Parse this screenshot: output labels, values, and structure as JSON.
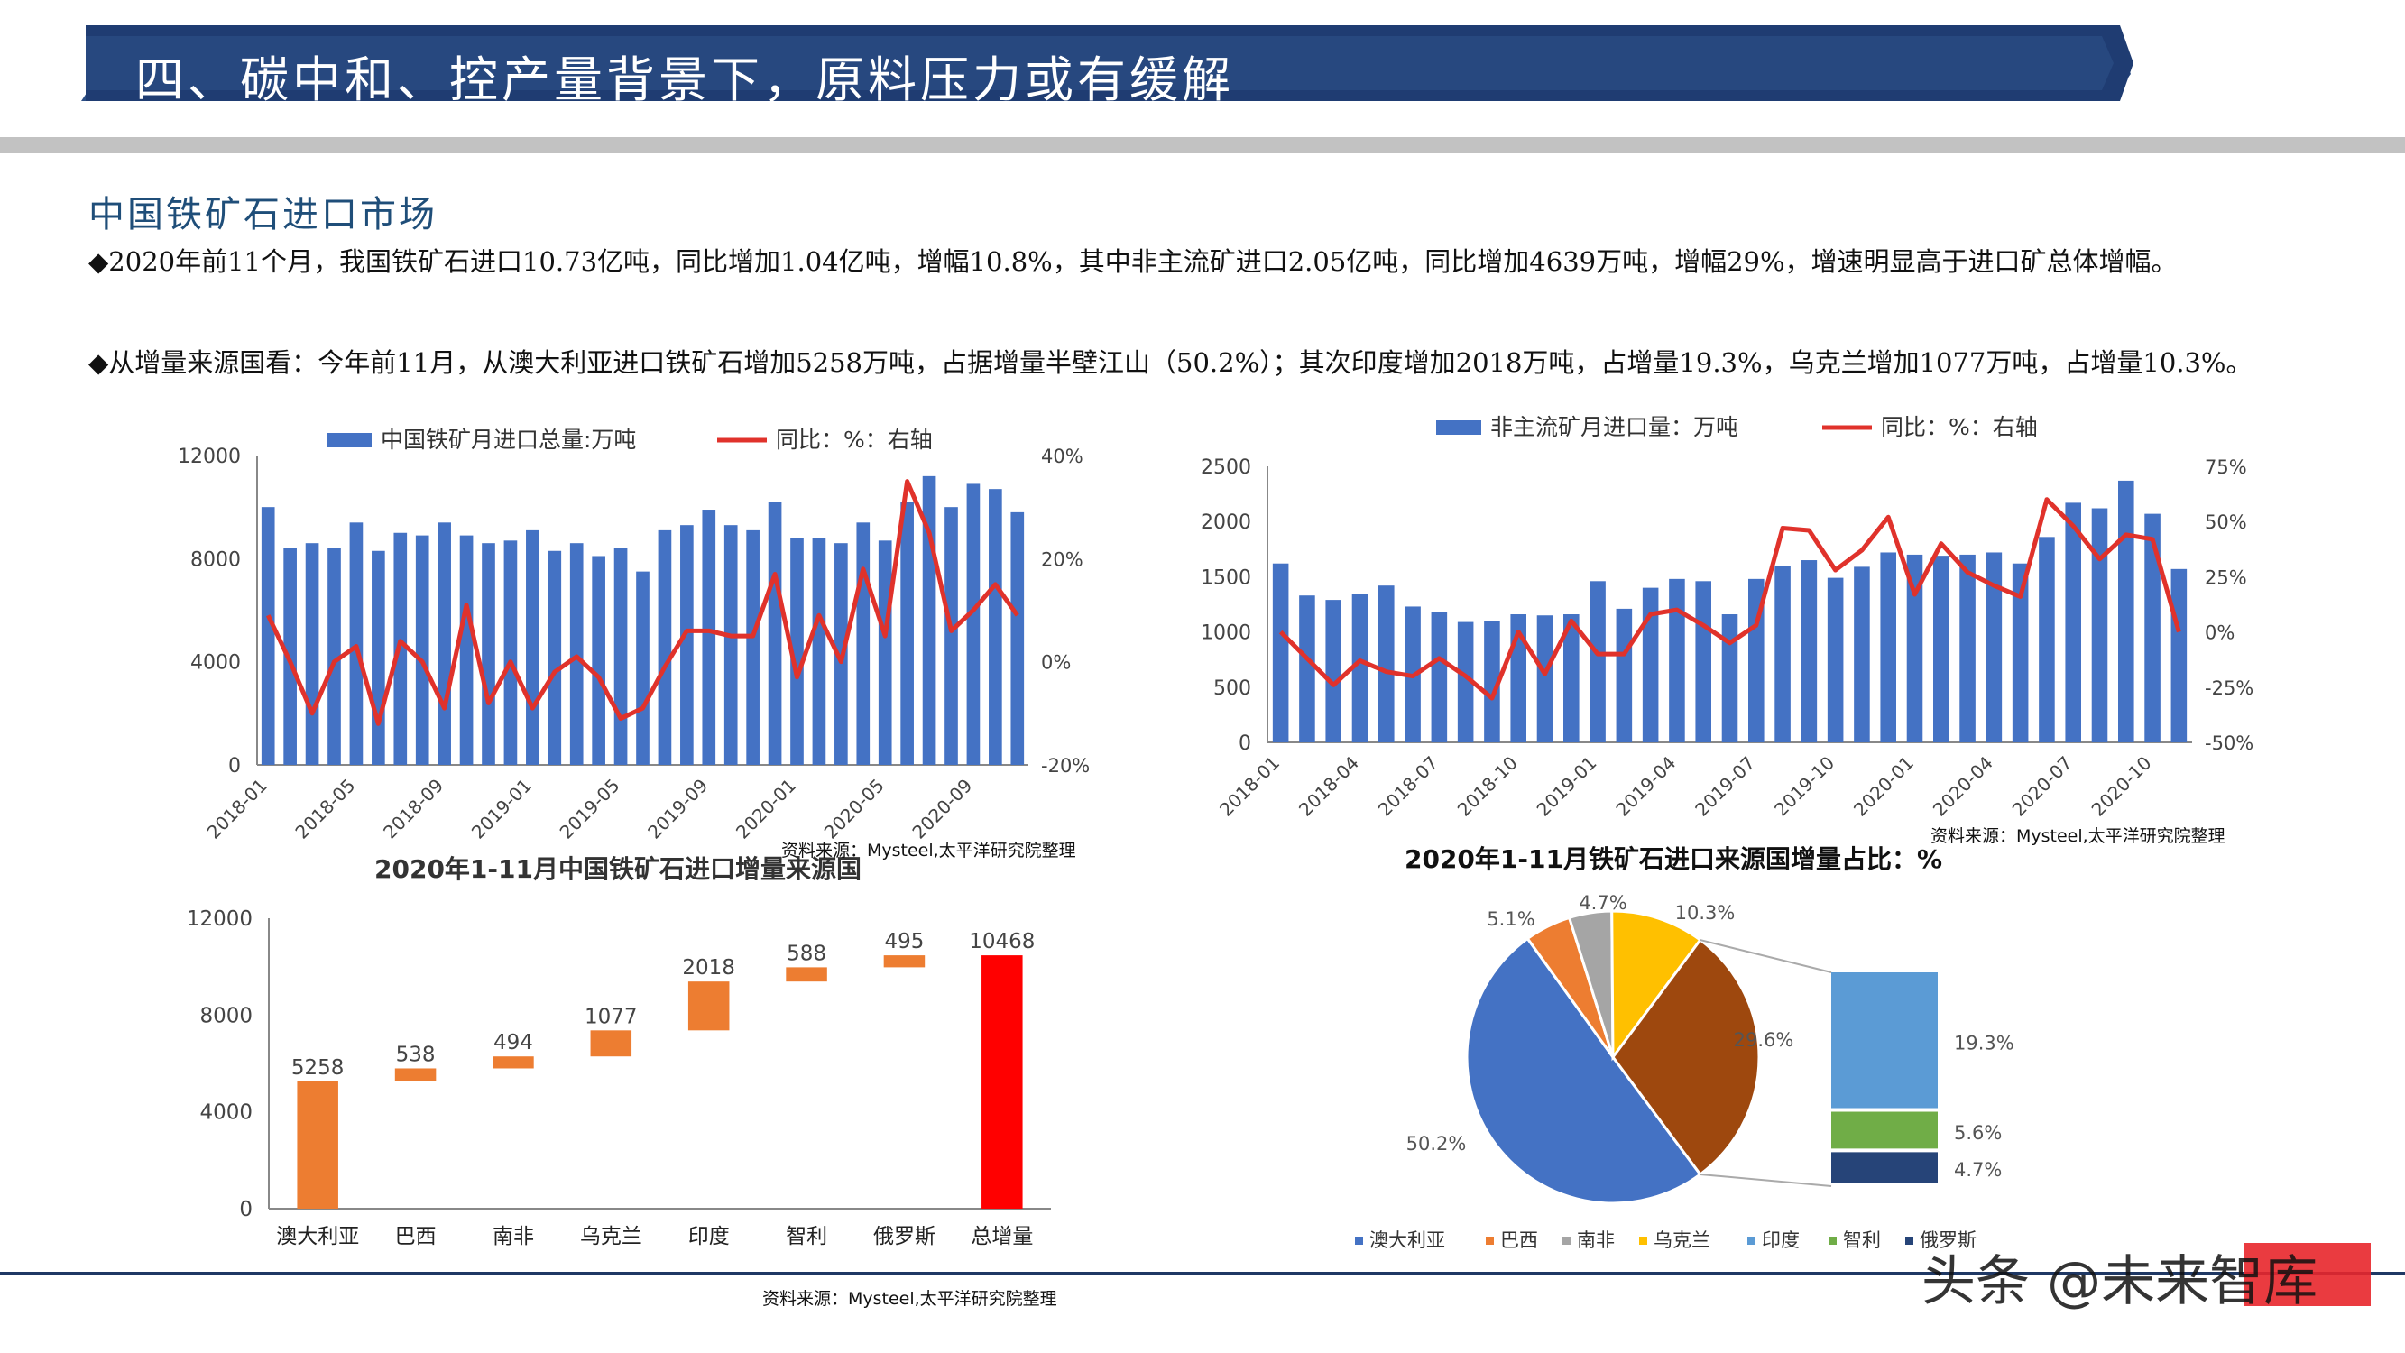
{
  "header": {
    "title": "四、碳中和、控产量背景下，原料压力或有缓解"
  },
  "section": {
    "heading": "中国铁矿石进口市场"
  },
  "paragraphs": [
    "◆2020年前11个月，我国铁矿石进口10.73亿吨，同比增加1.04亿吨，增幅10.8%，其中非主流矿进口2.05亿吨，同比增加4639万吨，增幅29%，增速明显高于进口矿总体增幅。",
    "◆从增量来源国看：今年前11月，从澳大利亚进口铁矿石增加5258万吨，占据增量半壁江山（50.2%）；其次印度增加2018万吨，占增量19.3%，乌克兰增加1077万吨，占增量10.3%。"
  ],
  "sources": {
    "s1": "资料来源：Mysteel,太平洋研究院整理",
    "s2": "资料来源：Mysteel,太平洋研究院整理",
    "s3": "资料来源：Mysteel,太平洋研究院整理"
  },
  "watermark": "头条 @未来智库",
  "colors": {
    "bar": "#4472c4",
    "line": "#e0322b",
    "orange": "#ed7d31",
    "red": "#ff0000",
    "header": "#1f3c72"
  },
  "chart_data": [
    {
      "type": "bar",
      "id": "chart1",
      "legend": [
        "中国铁矿月进口总量:万吨",
        "同比：%：右轴"
      ],
      "legend_position": "top",
      "x_tick_labels": [
        "2018-01",
        "2018-05",
        "2018-09",
        "2019-01",
        "2019-05",
        "2019-09",
        "2020-01",
        "2020-05",
        "2020-09"
      ],
      "x": [
        "2018-01",
        "2018-02",
        "2018-03",
        "2018-04",
        "2018-05",
        "2018-06",
        "2018-07",
        "2018-08",
        "2018-09",
        "2018-10",
        "2018-11",
        "2018-12",
        "2019-01",
        "2019-02",
        "2019-03",
        "2019-04",
        "2019-05",
        "2019-06",
        "2019-07",
        "2019-08",
        "2019-09",
        "2019-10",
        "2019-11",
        "2019-12",
        "2020-01",
        "2020-02",
        "2020-03",
        "2020-04",
        "2020-05",
        "2020-06",
        "2020-07",
        "2020-08",
        "2020-09",
        "2020-10",
        "2020-11"
      ],
      "ylim": [
        0,
        12000
      ],
      "yticks": [
        0,
        4000,
        8000,
        12000
      ],
      "y2lim": [
        -20,
        40
      ],
      "y2ticks": [
        "-20%",
        "0%",
        "20%",
        "40%"
      ],
      "series": [
        {
          "name": "中国铁矿月进口总量:万吨",
          "kind": "bar",
          "values": [
            10000,
            8400,
            8600,
            8400,
            9400,
            8300,
            9000,
            8900,
            9400,
            8900,
            8600,
            8700,
            9100,
            8300,
            8600,
            8100,
            8400,
            7500,
            9100,
            9300,
            9900,
            9300,
            9100,
            10200,
            8800,
            8800,
            8600,
            9400,
            8700,
            10200,
            11200,
            10000,
            10900,
            10700,
            9800
          ]
        },
        {
          "name": "同比：%：右轴",
          "kind": "line",
          "values": [
            9,
            0,
            -10,
            0,
            3,
            -12,
            4,
            0,
            -9,
            11,
            -8,
            0,
            -9,
            -2,
            1,
            -3,
            -11,
            -9,
            -1,
            6,
            6,
            5,
            5,
            17,
            -3,
            9,
            0,
            18,
            5,
            35,
            25,
            6,
            10,
            15,
            9
          ]
        }
      ]
    },
    {
      "type": "bar",
      "id": "chart2",
      "legend": [
        "非主流矿月进口量：万吨",
        "同比：%：右轴"
      ],
      "legend_position": "top",
      "x_tick_labels": [
        "2018-01",
        "2018-04",
        "2018-07",
        "2018-10",
        "2019-01",
        "2019-04",
        "2019-07",
        "2019-10",
        "2020-01",
        "2020-04",
        "2020-07",
        "2020-10"
      ],
      "x": [
        "2018-01",
        "2018-02",
        "2018-03",
        "2018-04",
        "2018-05",
        "2018-06",
        "2018-07",
        "2018-08",
        "2018-09",
        "2018-10",
        "2018-11",
        "2018-12",
        "2019-01",
        "2019-02",
        "2019-03",
        "2019-04",
        "2019-05",
        "2019-06",
        "2019-07",
        "2019-08",
        "2019-09",
        "2019-10",
        "2019-11",
        "2019-12",
        "2020-01",
        "2020-02",
        "2020-03",
        "2020-04",
        "2020-05",
        "2020-06",
        "2020-07",
        "2020-08",
        "2020-09",
        "2020-10",
        "2020-11"
      ],
      "ylim": [
        0,
        2500
      ],
      "yticks": [
        0,
        500,
        1000,
        1500,
        2000,
        2500
      ],
      "y2lim": [
        -50,
        75
      ],
      "y2ticks": [
        "-50%",
        "-25%",
        "0%",
        "25%",
        "50%",
        "75%"
      ],
      "series": [
        {
          "name": "非主流矿月进口量：万吨",
          "kind": "bar",
          "values": [
            1620,
            1330,
            1290,
            1340,
            1420,
            1230,
            1180,
            1090,
            1100,
            1160,
            1150,
            1160,
            1460,
            1210,
            1400,
            1480,
            1460,
            1160,
            1480,
            1600,
            1650,
            1490,
            1590,
            1720,
            1700,
            1690,
            1700,
            1720,
            1620,
            1860,
            2170,
            2120,
            2370,
            2070,
            1570
          ]
        },
        {
          "name": "同比：%：右轴",
          "kind": "line",
          "values": [
            0,
            -12,
            -24,
            -13,
            -18,
            -20,
            -12,
            -20,
            -30,
            0,
            -19,
            5,
            -10,
            -10,
            8,
            10,
            3,
            -5,
            3,
            47,
            46,
            28,
            37,
            52,
            17,
            40,
            27,
            21,
            16,
            60,
            48,
            33,
            44,
            42,
            0
          ]
        }
      ]
    },
    {
      "type": "bar",
      "id": "chart3",
      "subtype": "waterfall",
      "title": "2020年1-11月中国铁矿石进口增量来源国",
      "categories": [
        "澳大利亚",
        "巴西",
        "南非",
        "乌克兰",
        "印度",
        "智利",
        "俄罗斯",
        "总增量"
      ],
      "values": [
        5258,
        538,
        494,
        1077,
        2018,
        588,
        495,
        10468
      ],
      "labels": [
        "5258",
        "538",
        "494",
        "1077",
        "2018",
        "588",
        "495",
        "10468"
      ],
      "ylim": [
        0,
        12000
      ],
      "yticks": [
        0,
        4000,
        8000,
        12000
      ]
    },
    {
      "type": "pie",
      "id": "chart4",
      "title": "2020年1-11月铁矿石进口来源国增量占比：%",
      "categories": [
        "澳大利亚",
        "巴西",
        "南非",
        "乌克兰",
        "印度",
        "智利",
        "俄罗斯"
      ],
      "values": [
        50.2,
        5.1,
        4.7,
        10.3,
        19.3,
        5.6,
        4.7
      ],
      "pie_labels": [
        "50.2%",
        "5.1%",
        "4.7%",
        "10.3%",
        "29.6%"
      ],
      "sub_labels": [
        "19.3%",
        "5.6%",
        "4.7%"
      ],
      "colors": [
        "#4472c4",
        "#ed7d31",
        "#a5a5a5",
        "#ffc000",
        "#5b9bd5",
        "#70ad47",
        "#264478"
      ],
      "other_color": "#9e480e",
      "legend_position": "bottom"
    }
  ]
}
